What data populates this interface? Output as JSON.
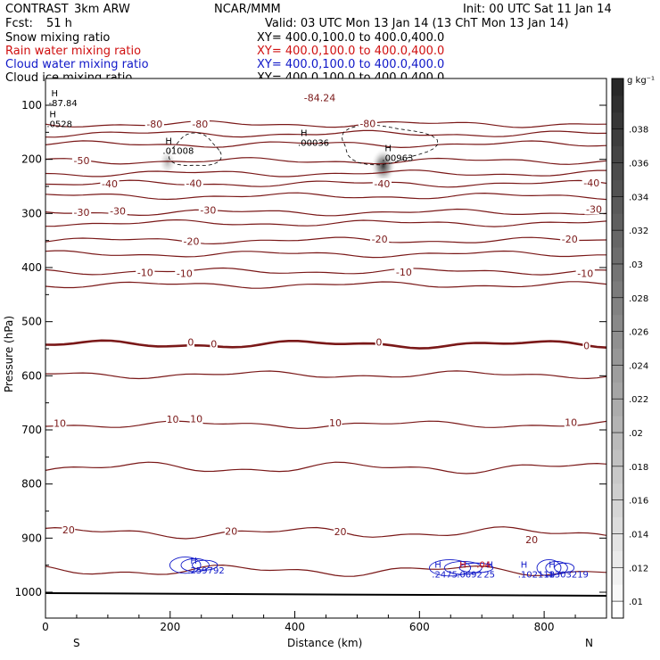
{
  "header": {
    "project": "CONTRAST",
    "model": "3km ARW",
    "center": "NCAR/MMM",
    "init": "Init: 00 UTC Sat 11 Jan 14",
    "fcst_label": "Fcst:",
    "fcst_value": "51 h",
    "valid": "Valid: 03 UTC Mon 13 Jan 14 (13 ChT Mon 13 Jan 14)"
  },
  "fields": [
    {
      "name": "Snow mixing ratio",
      "xy": "XY= 400.0,100.0 to 400.0,400.0",
      "color": "#000000"
    },
    {
      "name": "Rain water mixing ratio",
      "xy": "XY= 400.0,100.0 to 400.0,400.0",
      "color": "#d01010"
    },
    {
      "name": "Cloud water mixing ratio",
      "xy": "XY= 400.0,100.0 to 400.0,400.0",
      "color": "#1018c8"
    },
    {
      "name": "Cloud ice mixing ratio",
      "xy": "XY= 400.0,100.0 to 400.0,400.0",
      "color": "#000000"
    }
  ],
  "chart_data": {
    "type": "contour cross-section",
    "xlabel": "Distance (km)",
    "ylabel": "Pressure (hPa)",
    "xlim": [
      0,
      900
    ],
    "ylim": [
      1050,
      55
    ],
    "x_ticks": [
      0,
      200,
      400,
      600,
      800
    ],
    "x_ticklabels": [
      "0",
      "200",
      "400",
      "600",
      "800"
    ],
    "y_ticks": [
      100,
      200,
      300,
      400,
      500,
      600,
      700,
      800,
      900,
      1000
    ],
    "y_ticklabels": [
      "100",
      "200",
      "300",
      "400",
      "500",
      "600",
      "700",
      "800",
      "900",
      "1000"
    ],
    "end_labels": {
      "left": "S",
      "right": "N"
    },
    "colorbar": {
      "unit": "g kg⁻¹",
      "min": 0.009,
      "max": 0.041,
      "levels": [
        0.01,
        0.012,
        0.014,
        0.016,
        0.018,
        0.02,
        0.022,
        0.024,
        0.026,
        0.028,
        0.03,
        0.032,
        0.034,
        0.036,
        0.038
      ],
      "labels": [
        ".01",
        ".012",
        ".014",
        ".016",
        ".018",
        ".02",
        ".022",
        ".024",
        ".026",
        ".028",
        ".03",
        ".032",
        ".034",
        ".036",
        ".038"
      ]
    },
    "temperature_isotherms_C": [
      {
        "value": -80,
        "p": 135
      },
      {
        "value": -70,
        "p": 153
      },
      {
        "value": -60,
        "p": 172
      },
      {
        "value": -50,
        "p": 203
      },
      {
        "value": -45,
        "p": 226
      },
      {
        "value": -40,
        "p": 245
      },
      {
        "value": -35,
        "p": 268
      },
      {
        "value": -30,
        "p": 298
      },
      {
        "value": -25,
        "p": 318
      },
      {
        "value": -20,
        "p": 350
      },
      {
        "value": -15,
        "p": 375
      },
      {
        "value": -10,
        "p": 407
      },
      {
        "value": -5,
        "p": 432
      },
      {
        "value": 0,
        "p": 542
      },
      {
        "value": 5,
        "p": 598
      },
      {
        "value": 10,
        "p": 690
      },
      {
        "value": 15,
        "p": 770
      },
      {
        "value": 20,
        "p": 890
      },
      {
        "value": 25,
        "p": 960
      }
    ],
    "contour_labels": [
      {
        "text": "-84.24",
        "x": 440,
        "p": 86
      },
      {
        "text": "-80",
        "x": 175,
        "p": 135
      },
      {
        "text": "-80",
        "x": 248,
        "p": 135
      },
      {
        "text": "-80",
        "x": 517,
        "p": 134
      },
      {
        "text": "-50",
        "x": 58,
        "p": 202
      },
      {
        "text": "-40",
        "x": 103,
        "p": 245
      },
      {
        "text": "-40",
        "x": 238,
        "p": 244
      },
      {
        "text": "-40",
        "x": 540,
        "p": 245
      },
      {
        "text": "-40",
        "x": 876,
        "p": 243
      },
      {
        "text": "-30",
        "x": 58,
        "p": 298
      },
      {
        "text": "-30",
        "x": 116,
        "p": 295
      },
      {
        "text": "-30",
        "x": 261,
        "p": 294
      },
      {
        "text": "-30",
        "x": 880,
        "p": 292
      },
      {
        "text": "-20",
        "x": 234,
        "p": 351
      },
      {
        "text": "-20",
        "x": 536,
        "p": 347
      },
      {
        "text": "-20",
        "x": 841,
        "p": 347
      },
      {
        "text": "-10",
        "x": 160,
        "p": 409
      },
      {
        "text": "-10",
        "x": 223,
        "p": 411
      },
      {
        "text": "-10",
        "x": 575,
        "p": 408
      },
      {
        "text": "-10",
        "x": 866,
        "p": 411
      },
      {
        "text": "0",
        "x": 233,
        "p": 538
      },
      {
        "text": "0",
        "x": 270,
        "p": 541
      },
      {
        "text": "0",
        "x": 535,
        "p": 538
      },
      {
        "text": "0",
        "x": 868,
        "p": 544
      },
      {
        "text": "10",
        "x": 23,
        "p": 688
      },
      {
        "text": "10",
        "x": 204,
        "p": 680
      },
      {
        "text": "10",
        "x": 242,
        "p": 679
      },
      {
        "text": "10",
        "x": 465,
        "p": 687
      },
      {
        "text": "10",
        "x": 843,
        "p": 686
      },
      {
        "text": "20",
        "x": 37,
        "p": 885
      },
      {
        "text": "20",
        "x": 298,
        "p": 887
      },
      {
        "text": "20",
        "x": 473,
        "p": 888
      },
      {
        "text": "20",
        "x": 780,
        "p": 903
      }
    ],
    "maxima": [
      {
        "label": "-87.84",
        "x": 5,
        "p": 102
      },
      {
        "label": ".0528",
        "x": 2,
        "p": 140
      },
      {
        "label": ".01008",
        "x": 188,
        "p": 190
      },
      {
        "label": ".00036",
        "x": 405,
        "p": 175
      },
      {
        "label": ".00963",
        "x": 540,
        "p": 203
      },
      {
        "label": ".259792",
        "x": 228,
        "p": 965
      },
      {
        "label": ".2475",
        "x": 620,
        "p": 973
      },
      {
        "label": ".0692",
        "x": 660,
        "p": 973
      },
      {
        "label": "25",
        "x": 703,
        "p": 973
      },
      {
        "label": ".102118",
        "x": 758,
        "p": 973
      },
      {
        "label": ".1303219",
        "x": 803,
        "p": 973
      }
    ],
    "rain_label": {
      "label": ".04",
      "x": 660,
      "p": 973
    },
    "snow_shading": [
      {
        "x": 196,
        "p": 205,
        "value": 0.02
      },
      {
        "x": 542,
        "p": 212,
        "value": 0.036
      }
    ],
    "cloud_ice_outlines": [
      {
        "x_center": 240,
        "p_center": 185,
        "x_span": 80,
        "p_span": 60
      },
      {
        "x_center": 545,
        "p_center": 172,
        "x_span": 150,
        "p_span": 70
      }
    ],
    "cloud_water_cells": [
      {
        "x_center": 240,
        "p_center": 950,
        "x_span": 90,
        "p_span": 30
      },
      {
        "x_center": 670,
        "p_center": 955,
        "x_span": 120,
        "p_span": 30
      },
      {
        "x_center": 820,
        "p_center": 955,
        "x_span": 70,
        "p_span": 30
      }
    ]
  }
}
